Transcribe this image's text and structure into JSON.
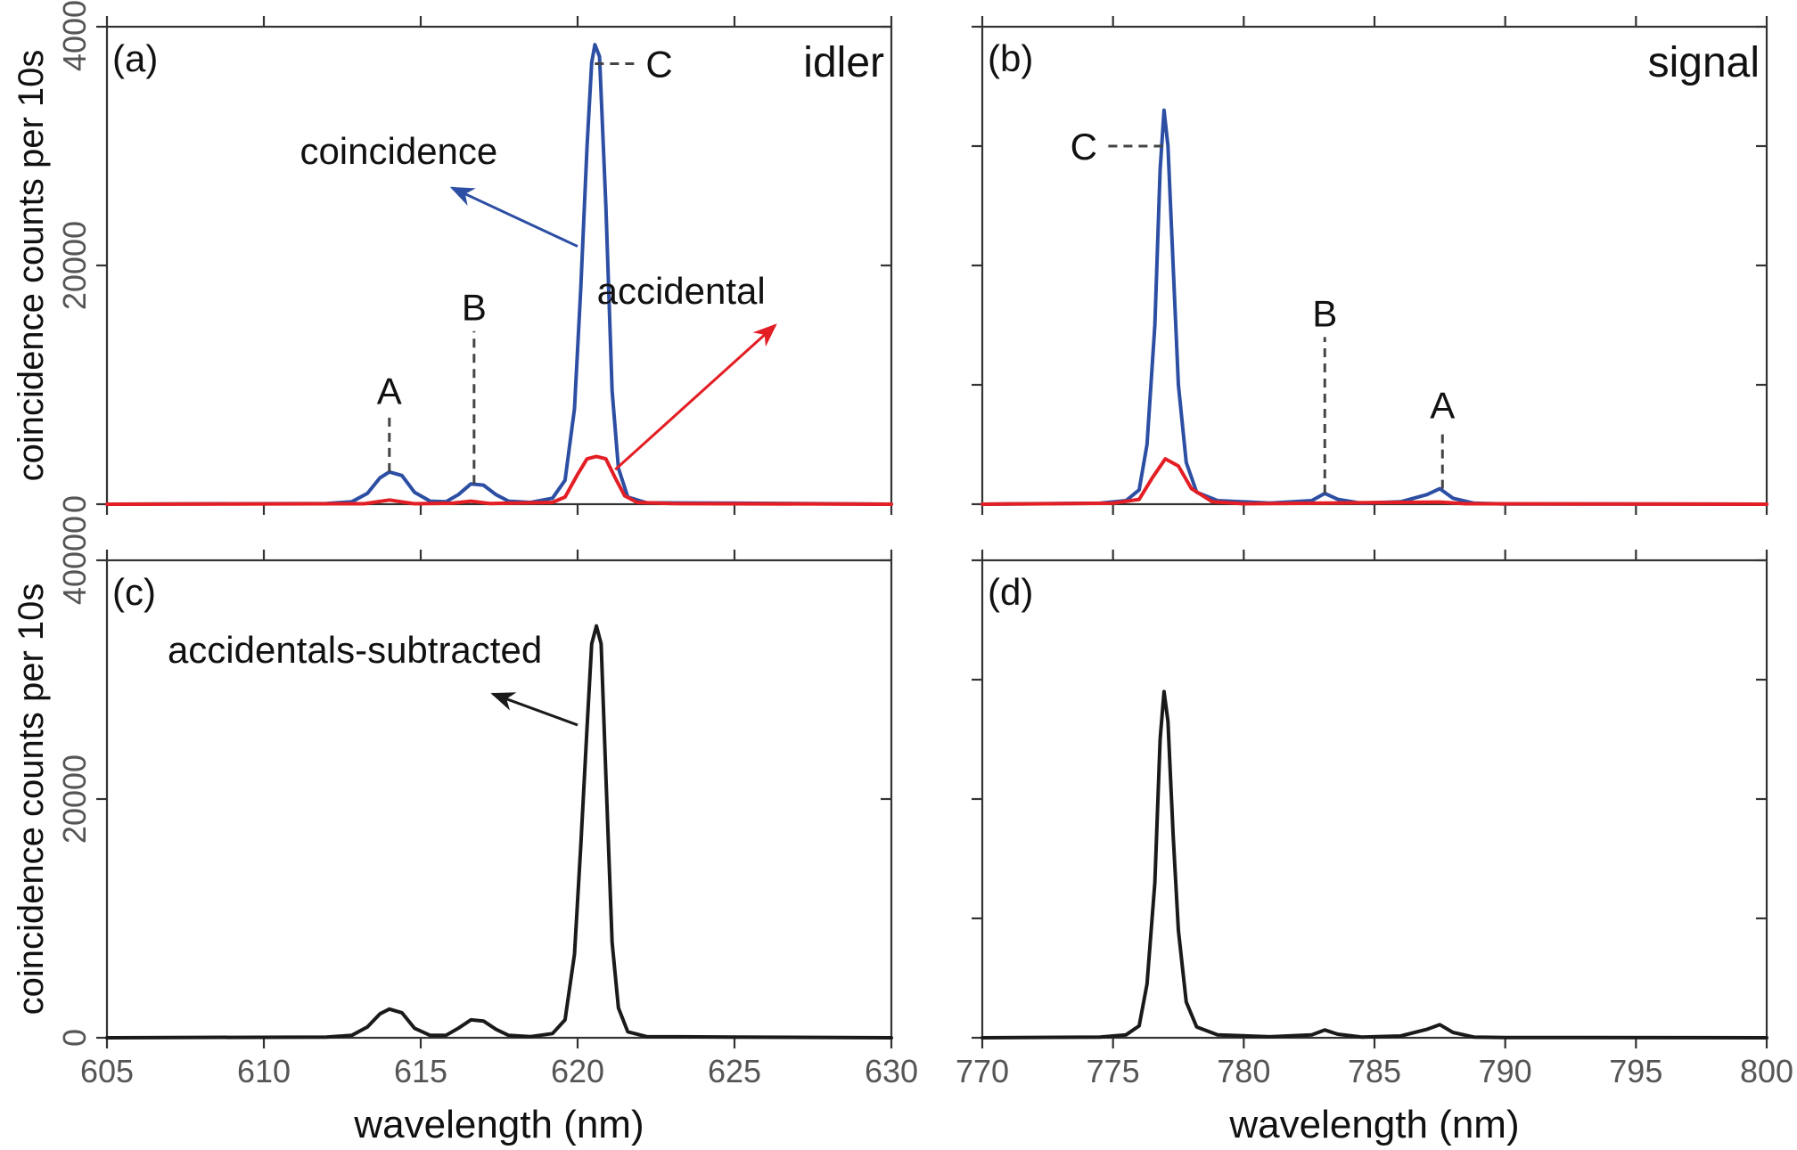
{
  "colors": {
    "coincidence": "#2c4ea3",
    "accidental": "#e31e24",
    "subtracted": "#1a1a1a",
    "axis": "#333333",
    "tick_label": "#555555"
  },
  "chart_data": [
    {
      "id": "a",
      "type": "line",
      "panel_label": "(a)",
      "corner_label": "idler",
      "ylabel": "coincidence counts per 10s",
      "xlim": [
        605,
        630
      ],
      "ylim": [
        0,
        40000
      ],
      "xticks": [
        605,
        610,
        615,
        620,
        625,
        630
      ],
      "yticks": [
        0,
        20000,
        40000
      ],
      "ytick_labels": [
        "0",
        "20000",
        "40000"
      ],
      "show_x_tick_labels": false,
      "show_y_tick_labels": true,
      "series": [
        {
          "name": "coincidence",
          "color": "#2c4ea3",
          "points": [
            [
              605,
              0
            ],
            [
              612,
              60
            ],
            [
              612.8,
              200
            ],
            [
              613.3,
              900
            ],
            [
              613.7,
              2200
            ],
            [
              614,
              2700
            ],
            [
              614.4,
              2400
            ],
            [
              614.8,
              1000
            ],
            [
              615.3,
              250
            ],
            [
              615.8,
              200
            ],
            [
              616.2,
              800
            ],
            [
              616.6,
              1700
            ],
            [
              617,
              1600
            ],
            [
              617.4,
              800
            ],
            [
              617.8,
              250
            ],
            [
              618.5,
              150
            ],
            [
              619.2,
              500
            ],
            [
              619.6,
              2000
            ],
            [
              619.9,
              8000
            ],
            [
              620.1,
              18000
            ],
            [
              620.3,
              30000
            ],
            [
              620.45,
              37000
            ],
            [
              620.55,
              38500
            ],
            [
              620.7,
              37500
            ],
            [
              620.9,
              25000
            ],
            [
              621.1,
              9500
            ],
            [
              621.3,
              3000
            ],
            [
              621.6,
              600
            ],
            [
              622.2,
              120
            ],
            [
              625,
              80
            ],
            [
              630,
              0
            ]
          ]
        },
        {
          "name": "accidental",
          "color": "#e31e24",
          "points": [
            [
              605,
              0
            ],
            [
              613.2,
              40
            ],
            [
              614,
              350
            ],
            [
              614.8,
              40
            ],
            [
              616,
              80
            ],
            [
              616.6,
              250
            ],
            [
              617.2,
              60
            ],
            [
              619.2,
              150
            ],
            [
              619.6,
              600
            ],
            [
              620,
              2500
            ],
            [
              620.3,
              3800
            ],
            [
              620.6,
              4000
            ],
            [
              620.9,
              3800
            ],
            [
              621.2,
              2200
            ],
            [
              621.5,
              700
            ],
            [
              621.9,
              150
            ],
            [
              623,
              50
            ],
            [
              630,
              0
            ]
          ]
        }
      ],
      "annotations": [
        {
          "text": "coincidence",
          "color": "#2c4ea3",
          "label_at": [
            614.3,
            28500
          ],
          "arrow_from": [
            620.0,
            21600
          ],
          "arrow_to": [
            616.0,
            26500
          ]
        },
        {
          "text": "accidental",
          "color": "#e31e24",
          "label_at": [
            623.3,
            16800
          ],
          "arrow_from": [
            621.2,
            2900
          ],
          "arrow_to": [
            626.3,
            15000
          ]
        }
      ],
      "peak_markers": [
        {
          "letter": "A",
          "x": 614.0,
          "y_from": 2700,
          "y_to": 7500,
          "mode": "vertical"
        },
        {
          "letter": "B",
          "x": 616.7,
          "y_from": 1700,
          "y_to": 14500,
          "mode": "vertical"
        },
        {
          "letter": "C",
          "x": 620.55,
          "y": 36900,
          "x_to": 622.0,
          "mode": "horizontal"
        }
      ]
    },
    {
      "id": "b",
      "type": "line",
      "panel_label": "(b)",
      "corner_label": "signal",
      "xlim": [
        770,
        800
      ],
      "ylim": [
        0,
        40000
      ],
      "xticks": [
        770,
        775,
        780,
        785,
        790,
        795,
        800
      ],
      "yticks": [
        0,
        10000,
        20000,
        30000,
        40000
      ],
      "show_x_tick_labels": false,
      "show_y_tick_labels": false,
      "series": [
        {
          "name": "coincidence",
          "color": "#2c4ea3",
          "points": [
            [
              770,
              0
            ],
            [
              774.5,
              80
            ],
            [
              775.5,
              300
            ],
            [
              776,
              1200
            ],
            [
              776.3,
              5000
            ],
            [
              776.6,
              15000
            ],
            [
              776.8,
              28000
            ],
            [
              776.95,
              33000
            ],
            [
              777.1,
              30000
            ],
            [
              777.3,
              20000
            ],
            [
              777.5,
              10000
            ],
            [
              777.8,
              3500
            ],
            [
              778.2,
              1000
            ],
            [
              779,
              300
            ],
            [
              781,
              100
            ],
            [
              782.6,
              300
            ],
            [
              783.1,
              900
            ],
            [
              783.6,
              400
            ],
            [
              784.5,
              80
            ],
            [
              786,
              200
            ],
            [
              787,
              800
            ],
            [
              787.5,
              1300
            ],
            [
              788,
              500
            ],
            [
              788.8,
              80
            ],
            [
              790,
              20
            ],
            [
              800,
              0
            ]
          ]
        },
        {
          "name": "accidental",
          "color": "#e31e24",
          "points": [
            [
              770,
              0
            ],
            [
              775,
              80
            ],
            [
              776,
              400
            ],
            [
              776.5,
              2200
            ],
            [
              777,
              3800
            ],
            [
              777.5,
              3200
            ],
            [
              778,
              1300
            ],
            [
              778.8,
              200
            ],
            [
              780,
              40
            ],
            [
              783.2,
              100
            ],
            [
              787.5,
              180
            ],
            [
              788.5,
              40
            ],
            [
              800,
              0
            ]
          ]
        }
      ],
      "peak_markers": [
        {
          "letter": "B",
          "x": 783.1,
          "y_from": 900,
          "y_to": 14000,
          "mode": "vertical"
        },
        {
          "letter": "A",
          "x": 787.6,
          "y_from": 1300,
          "y_to": 6300,
          "mode": "vertical"
        },
        {
          "letter": "C",
          "x": 776.9,
          "y": 30000,
          "x_to": 774.6,
          "mode": "horizontal"
        }
      ]
    },
    {
      "id": "c",
      "type": "line",
      "panel_label": "(c)",
      "ylabel": "coincidence counts per 10s",
      "xlabel": "wavelength (nm)",
      "xlim": [
        605,
        630
      ],
      "ylim": [
        0,
        40000
      ],
      "xticks": [
        605,
        610,
        615,
        620,
        625,
        630
      ],
      "xtick_labels": [
        "605",
        "610",
        "615",
        "620",
        "625",
        "630"
      ],
      "yticks": [
        0,
        20000,
        40000
      ],
      "ytick_labels": [
        "0",
        "20000",
        "40000"
      ],
      "show_x_tick_labels": true,
      "show_y_tick_labels": true,
      "series": [
        {
          "name": "accidentals-subtracted",
          "color": "#1a1a1a",
          "points": [
            [
              605,
              0
            ],
            [
              612,
              60
            ],
            [
              612.8,
              200
            ],
            [
              613.3,
              900
            ],
            [
              613.7,
              2000
            ],
            [
              614,
              2400
            ],
            [
              614.4,
              2100
            ],
            [
              614.8,
              800
            ],
            [
              615.3,
              200
            ],
            [
              615.8,
              200
            ],
            [
              616.2,
              800
            ],
            [
              616.6,
              1500
            ],
            [
              617,
              1400
            ],
            [
              617.4,
              700
            ],
            [
              617.8,
              200
            ],
            [
              618.5,
              100
            ],
            [
              619.2,
              350
            ],
            [
              619.6,
              1500
            ],
            [
              619.9,
              7000
            ],
            [
              620.1,
              16000
            ],
            [
              620.3,
              26000
            ],
            [
              620.45,
              33000
            ],
            [
              620.6,
              34500
            ],
            [
              620.75,
              33000
            ],
            [
              620.9,
              22000
            ],
            [
              621.1,
              8000
            ],
            [
              621.3,
              2500
            ],
            [
              621.6,
              500
            ],
            [
              622.2,
              100
            ],
            [
              625,
              60
            ],
            [
              630,
              0
            ]
          ]
        }
      ],
      "annotations": [
        {
          "text": "accidentals-subtracted",
          "color": "#1a1a1a",
          "label_at": [
            612.9,
            31400
          ],
          "arrow_from": [
            620.0,
            26200
          ],
          "arrow_to": [
            617.3,
            28800
          ]
        }
      ]
    },
    {
      "id": "d",
      "type": "line",
      "panel_label": "(d)",
      "xlabel": "wavelength (nm)",
      "xlim": [
        770,
        800
      ],
      "ylim": [
        0,
        40000
      ],
      "xticks": [
        770,
        775,
        780,
        785,
        790,
        795,
        800
      ],
      "xtick_labels": [
        "770",
        "775",
        "780",
        "785",
        "790",
        "795",
        "800"
      ],
      "yticks": [
        0,
        10000,
        20000,
        30000,
        40000
      ],
      "show_x_tick_labels": true,
      "show_y_tick_labels": false,
      "series": [
        {
          "name": "accidentals-subtracted",
          "color": "#1a1a1a",
          "points": [
            [
              770,
              0
            ],
            [
              774.5,
              60
            ],
            [
              775.5,
              250
            ],
            [
              776,
              1000
            ],
            [
              776.3,
              4500
            ],
            [
              776.6,
              13000
            ],
            [
              776.8,
              25000
            ],
            [
              776.95,
              29000
            ],
            [
              777.1,
              26500
            ],
            [
              777.3,
              17000
            ],
            [
              777.5,
              9000
            ],
            [
              777.8,
              3000
            ],
            [
              778.2,
              900
            ],
            [
              779,
              250
            ],
            [
              781,
              80
            ],
            [
              782.6,
              250
            ],
            [
              783.1,
              650
            ],
            [
              783.6,
              300
            ],
            [
              784.5,
              60
            ],
            [
              786,
              150
            ],
            [
              787,
              700
            ],
            [
              787.5,
              1100
            ],
            [
              788,
              450
            ],
            [
              788.8,
              60
            ],
            [
              790,
              20
            ],
            [
              800,
              0
            ]
          ]
        }
      ]
    }
  ]
}
